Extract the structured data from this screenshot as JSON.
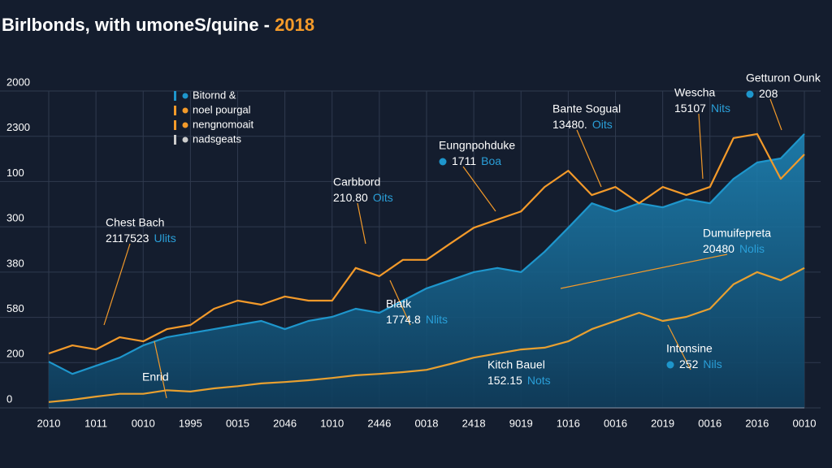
{
  "chart_data": {
    "type": "line",
    "title": "Birlbonds, with umoneS/quine - ",
    "title_highlight": "2018",
    "x": [
      0,
      0.5,
      1,
      1.5,
      2,
      2.5,
      3,
      3.5,
      4,
      4.5,
      5,
      5.5,
      6,
      6.5,
      7,
      7.5,
      8,
      8.5,
      9,
      9.5,
      10,
      10.5,
      11,
      11.5,
      12,
      12.5,
      13,
      13.5,
      14,
      14.5,
      15,
      15.5,
      16
    ],
    "xlim": [
      0,
      16
    ],
    "xticks": [
      {
        "value": 0,
        "label": "2010"
      },
      {
        "value": 1,
        "label": "1011"
      },
      {
        "value": 2,
        "label": "0010"
      },
      {
        "value": 3,
        "label": "1995"
      },
      {
        "value": 4,
        "label": "0015"
      },
      {
        "value": 5,
        "label": "2046"
      },
      {
        "value": 6,
        "label": "1010"
      },
      {
        "value": 7,
        "label": "2446"
      },
      {
        "value": 8,
        "label": "0018"
      },
      {
        "value": 9,
        "label": "2418"
      },
      {
        "value": 10,
        "label": "9019"
      },
      {
        "value": 11,
        "label": "1016"
      },
      {
        "value": 12,
        "label": "0016"
      },
      {
        "value": 13,
        "label": "2019"
      },
      {
        "value": 14,
        "label": "0016"
      },
      {
        "value": 15,
        "label": "2016"
      },
      {
        "value": 16,
        "label": "0010"
      }
    ],
    "ylim": [
      0,
      700
    ],
    "yticks": [
      0,
      {
        "value": 100,
        "label": "200"
      },
      {
        "value": 200,
        "label": "580"
      },
      {
        "value": 300,
        "label": "380"
      },
      {
        "value": 400,
        "label": "300"
      },
      {
        "value": 500,
        "label": "100"
      },
      {
        "value": 600,
        "label": "2300"
      },
      {
        "value": 700,
        "label": "2000"
      }
    ],
    "grid": true,
    "series": [
      {
        "color": "#1e96cc",
        "area": true,
        "values": [
          102,
          75,
          93,
          111,
          138,
          156,
          165,
          174,
          183,
          192,
          174,
          192,
          201,
          219,
          210,
          237,
          264,
          282,
          300,
          309,
          300,
          345,
          398,
          452,
          434,
          452,
          443,
          461,
          452,
          506,
          542,
          551,
          605
        ]
      },
      {
        "color": "#f39a2a",
        "values": [
          120,
          138,
          129,
          156,
          147,
          174,
          183,
          219,
          237,
          228,
          246,
          237,
          237,
          309,
          291,
          327,
          327,
          363,
          398,
          416,
          434,
          488,
          524,
          470,
          488,
          452,
          488,
          470,
          488,
          596,
          605,
          506,
          560
        ]
      },
      {
        "color": "#e8a030",
        "values": [
          13,
          18,
          25,
          31,
          31,
          39,
          36,
          43,
          48,
          54,
          57,
          61,
          66,
          72,
          75,
          79,
          84,
          97,
          111,
          120,
          129,
          133,
          147,
          174,
          192,
          210,
          192,
          201,
          219,
          273,
          300,
          282,
          309
        ]
      }
    ],
    "legend": [
      {
        "text": "Bitornd &",
        "color": "#1e96cc"
      },
      {
        "text": "noel pourgal",
        "color": "#f39a2a"
      },
      {
        "text": "nengnomoait",
        "color": "#f39a2a"
      },
      {
        "text": "nadsgeats",
        "color": "#cccccc"
      }
    ],
    "annotations": [
      {
        "label": "Chest Bach",
        "value": "2117523",
        "unit": "Ulits"
      },
      {
        "label": "Carbbord",
        "value": "210.80",
        "unit": "Oits"
      },
      {
        "label": "Eungnpohduke",
        "value": "1711",
        "unit": "Boa"
      },
      {
        "label": "Bante Sogual",
        "value": "13480.",
        "unit": "Oits"
      },
      {
        "label": "Wescha",
        "value": "15107",
        "unit": "Nits"
      },
      {
        "label": "Getturon Ounk",
        "value": "208"
      },
      {
        "label": "Dumuifepreta",
        "value": "20480",
        "unit": "Nolis"
      },
      {
        "label": "Blatk",
        "value": "1774.8",
        "unit": "Nlits"
      },
      {
        "label": "Kitch Bauel",
        "value": "152.15",
        "unit": "Nots"
      },
      {
        "label": "Intonsine",
        "value": "252",
        "unit": "Nils"
      },
      {
        "label": "Enrid"
      }
    ]
  }
}
